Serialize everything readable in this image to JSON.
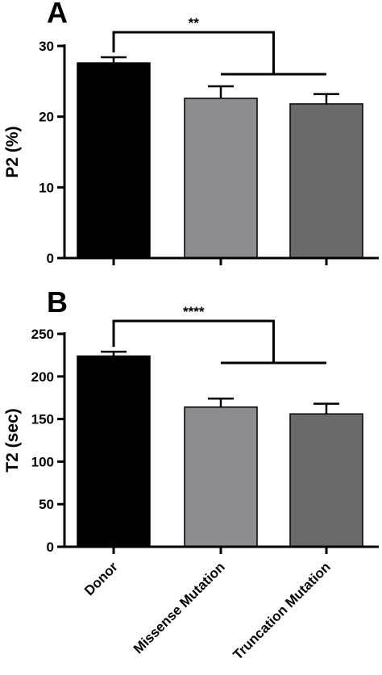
{
  "chart_data": [
    {
      "type": "bar",
      "panel": "A",
      "categories": [
        "Donor",
        "Missense Mutation",
        "Truncation Mutation"
      ],
      "values": [
        27.6,
        22.6,
        21.8
      ],
      "errors": [
        0.8,
        1.7,
        1.4
      ],
      "ylabel": "P2 (%)",
      "ylim": [
        0,
        30
      ],
      "yticks": [
        "0",
        "10",
        "20",
        "30"
      ],
      "significance": "**",
      "colors": [
        "#000000",
        "#8c8c91",
        "#6a6a6a"
      ]
    },
    {
      "type": "bar",
      "panel": "B",
      "categories": [
        "Donor",
        "Missense Mutation",
        "Truncation Mutation"
      ],
      "values": [
        224,
        164,
        156
      ],
      "errors": [
        5,
        10,
        12
      ],
      "ylabel": "T2 (sec)",
      "ylim": [
        0,
        250
      ],
      "yticks": [
        "0",
        "50",
        "100",
        "150",
        "200",
        "250"
      ],
      "significance": "****",
      "colors": [
        "#000000",
        "#8c8c91",
        "#6a6a6a"
      ]
    }
  ],
  "x_labels": [
    "Donor",
    "Missense Mutation",
    "Truncation Mutation"
  ]
}
